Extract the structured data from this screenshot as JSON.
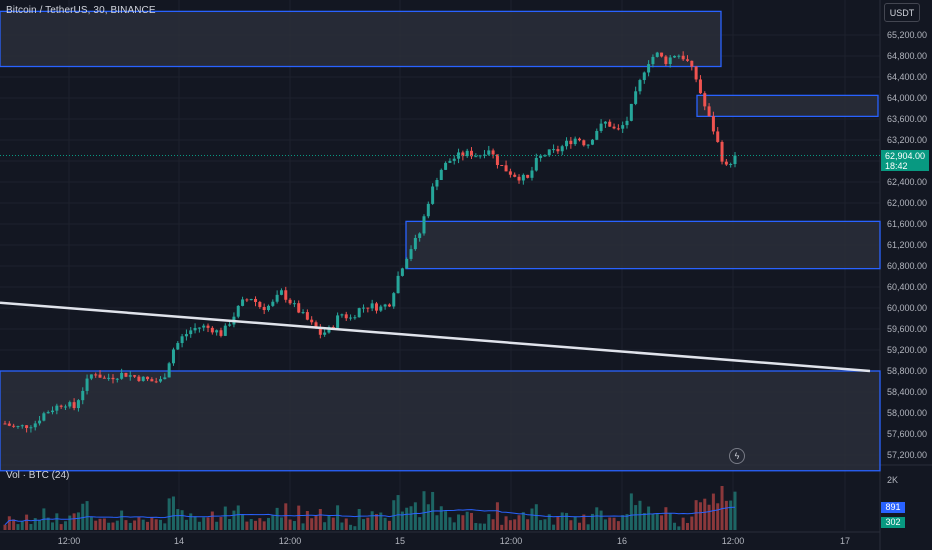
{
  "header": {
    "symbol_line": "Bitcoin / TetherUS, 30, BINANCE"
  },
  "currency_button": "USDT",
  "current_price": {
    "price": "62,904.00",
    "countdown": "18:42",
    "value": 62904
  },
  "volume": {
    "title": "Vol · BTC (24)",
    "top_label": "2K",
    "tag_a": "891",
    "tag_b": "302"
  },
  "colors": {
    "up": "#26a69a",
    "down": "#ef5350",
    "background": "#131722",
    "zone_border": "#2962ff",
    "zone_fill": "#2a2e39",
    "trendline": "#e0e3eb"
  },
  "chart_data": {
    "type": "candlestick",
    "title": "Bitcoin / TetherUS, 30, BINANCE",
    "y_axis": {
      "min": 57200,
      "max": 65600,
      "ticks": [
        "65,200.00",
        "64,800.00",
        "64,400.00",
        "64,000.00",
        "63,600.00",
        "63,200.00",
        "62,800.00",
        "62,400.00",
        "62,000.00",
        "61,600.00",
        "61,200.00",
        "60,800.00",
        "60,400.00",
        "60,000.00",
        "59,600.00",
        "59,200.00",
        "58,800.00",
        "58,400.00",
        "58,000.00",
        "57,600.00",
        "57,200.00"
      ]
    },
    "x_axis": {
      "ticks": [
        "12:00",
        "14",
        "12:00",
        "15",
        "12:00",
        "16",
        "12:00",
        "17"
      ]
    },
    "close_path": [
      57800,
      57720,
      57750,
      57800,
      58000,
      58100,
      58200,
      58100,
      58500,
      58800,
      58650,
      58700,
      58750,
      58700,
      58650,
      58600,
      58620,
      59200,
      59450,
      59600,
      59650,
      59600,
      59500,
      59800,
      60100,
      60200,
      60000,
      60050,
      60300,
      60100,
      59900,
      59700,
      59500,
      59600,
      59900,
      59800,
      60000,
      60050,
      60000,
      60100,
      60700,
      61100,
      61400,
      62100,
      62600,
      62800,
      62900,
      62950,
      62900,
      63050,
      62750,
      62600,
      62500,
      62450,
      62850,
      62950,
      63000,
      63150,
      63250,
      63100,
      63400,
      63550,
      63350,
      63550,
      64100,
      64650,
      64850,
      64700,
      64850,
      64750,
      64400,
      63800,
      63300,
      62650,
      62904
    ],
    "zones": [
      {
        "label": "supply-zone-top",
        "from": 64600,
        "to": 65650
      },
      {
        "label": "resistance-zone-right",
        "from": 63650,
        "to": 64050
      },
      {
        "label": "demand-zone-mid",
        "from": 60750,
        "to": 61650
      },
      {
        "label": "support-zone-bottom",
        "from": 56900,
        "to": 58800
      }
    ],
    "trendline": {
      "start_price": 60100,
      "end_price": 58800
    },
    "volume_max": 2000
  }
}
